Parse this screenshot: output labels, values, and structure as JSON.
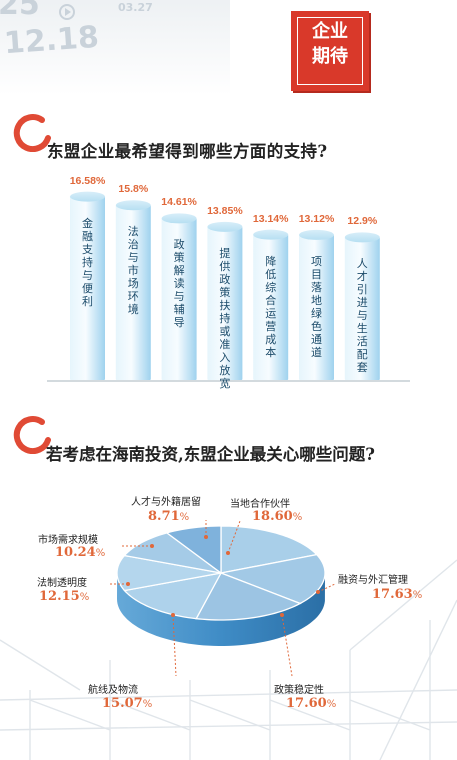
{
  "header": {
    "badge_line1": "企业",
    "badge_line2": "期待",
    "deco_numbers": [
      "25",
      "12.18",
      "03.27"
    ]
  },
  "section1": {
    "title": "东盟企业最希望得到哪些方面的支持?"
  },
  "section2": {
    "title": "若考虑在海南投资,东盟企业最关心哪些问题?"
  },
  "colors": {
    "accent": "#e0683a",
    "badge": "#d9392a",
    "bar_light": "#e6f5fc",
    "bar_dark": "#9fd2ee",
    "pie_top": "#a7cde8",
    "pie_side": "#3f8cc6",
    "label_text": "#1b4b6a"
  },
  "chart_data": [
    {
      "type": "bar",
      "title": "东盟企业最希望得到哪些方面的支持?",
      "categories": [
        "金融支持与便利",
        "法治与市场环境",
        "政策解读与辅导",
        "提供政策扶持或准入放宽",
        "降低综合运营成本",
        "项目落地绿色通道",
        "人才引进与生活配套"
      ],
      "values": [
        16.58,
        15.8,
        14.61,
        13.85,
        13.14,
        13.12,
        12.9
      ],
      "value_labels": [
        "16.58%",
        "15.8%",
        "14.61%",
        "13.85%",
        "13.14%",
        "13.12%",
        "12.9%"
      ],
      "unit": "%",
      "ylim": [
        0,
        17
      ],
      "grid": false
    },
    {
      "type": "pie",
      "title": "若考虑在海南投资,东盟企业最关心哪些问题?",
      "style": "3d",
      "slices": [
        {
          "label": "当地合作伙伴",
          "value": 18.6,
          "value_text": "18.60"
        },
        {
          "label": "融资与外汇管理",
          "value": 17.63,
          "value_text": "17.63"
        },
        {
          "label": "政策稳定性",
          "value": 17.6,
          "value_text": "17.60"
        },
        {
          "label": "航线及物流",
          "value": 15.07,
          "value_text": "15.07"
        },
        {
          "label": "法制透明度",
          "value": 12.15,
          "value_text": "12.15"
        },
        {
          "label": "市场需求规模",
          "value": 10.24,
          "value_text": "10.24"
        },
        {
          "label": "人才与外籍居留",
          "value": 8.71,
          "value_text": "8.71"
        }
      ],
      "unit": "%"
    }
  ]
}
